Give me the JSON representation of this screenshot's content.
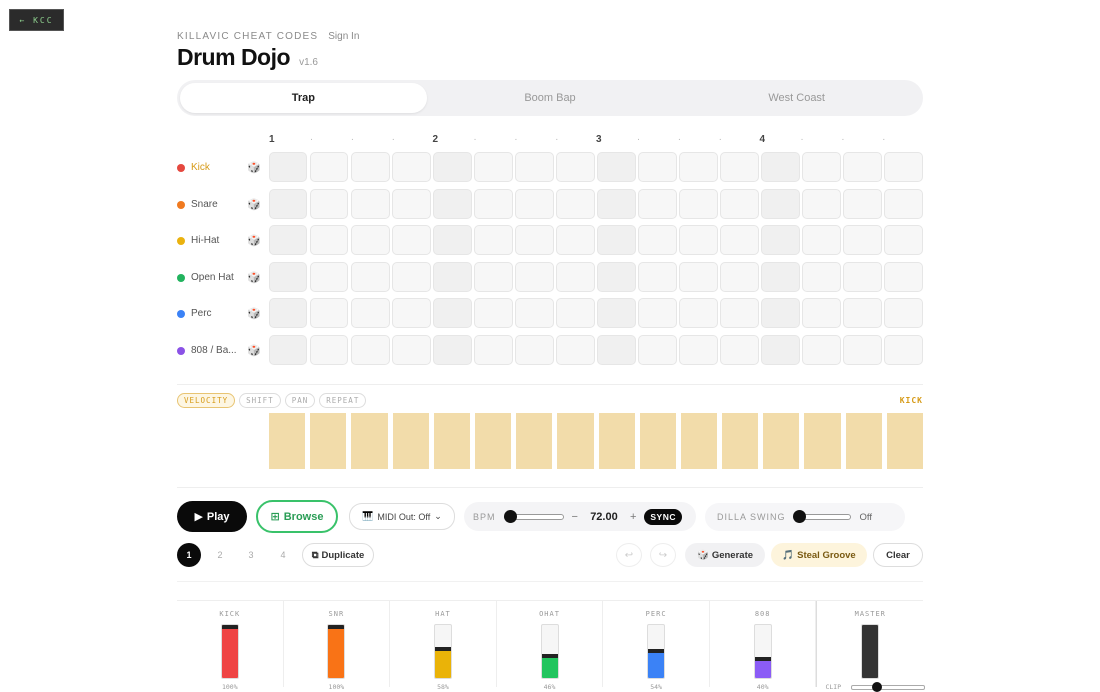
{
  "back_button": "← KCC",
  "header": {
    "brand": "KILLAVIC CHEAT CODES",
    "sign_in": "Sign In",
    "title": "Drum Dojo",
    "version": "v1.6"
  },
  "tabs": [
    {
      "label": "Trap",
      "active": true
    },
    {
      "label": "Boom Bap",
      "active": false
    },
    {
      "label": "West Coast",
      "active": false
    }
  ],
  "beat_markers": [
    "1",
    "·",
    "·",
    "·",
    "2",
    "·",
    "·",
    "·",
    "3",
    "·",
    "·",
    "·",
    "4",
    "·",
    "·",
    "·"
  ],
  "tracks": [
    {
      "name": "Kick",
      "color": "#e5483f",
      "active": true
    },
    {
      "name": "Snare",
      "color": "#f07a20",
      "active": false
    },
    {
      "name": "Hi-Hat",
      "color": "#eab20f",
      "active": false
    },
    {
      "name": "Open Hat",
      "color": "#22b35e",
      "active": false
    },
    {
      "name": "Perc",
      "color": "#3b82f6",
      "active": false
    },
    {
      "name": "808 / Ba...",
      "color": "#8b52e6",
      "active": false
    }
  ],
  "dice_icon": "🎲",
  "lanes": [
    {
      "label": "VELOCITY",
      "active": true
    },
    {
      "label": "SHIFT",
      "active": false
    },
    {
      "label": "PAN",
      "active": false
    },
    {
      "label": "REPEAT",
      "active": false
    }
  ],
  "selected_track_label": "KICK",
  "velocity_fill": [
    1,
    1,
    1,
    1,
    1,
    1,
    1,
    1,
    1,
    1,
    1,
    1,
    1,
    1,
    1,
    1
  ],
  "transport": {
    "play_label": "Play",
    "play_icon": "▶",
    "browse_label": "Browse",
    "browse_icon": "⊞",
    "midi_icon": "🎹",
    "midi_label": "MIDI Out: Off",
    "midi_caret": "⌄",
    "bpm_label": "BPM",
    "bpm_minus": "−",
    "bpm_value": "72.00",
    "bpm_plus": "+",
    "sync_label": "SYNC",
    "bpm_slider_fraction": 0.05,
    "swing_label": "DILLA SWING",
    "swing_value": "Off",
    "swing_slider_fraction": 0.0
  },
  "patterns": [
    "1",
    "2",
    "3",
    "4"
  ],
  "active_pattern": "1",
  "actions": {
    "duplicate_icon": "⧉",
    "duplicate_label": "Duplicate",
    "undo_icon": "↩",
    "redo_icon": "↪",
    "generate_icon": "🎲",
    "generate_label": "Generate",
    "steal_icon": "🎵",
    "steal_label": "Steal Groove",
    "clear_label": "Clear"
  },
  "mixer": {
    "channels": [
      {
        "label": "KICK",
        "value": "100%",
        "level": 1.0,
        "color": "#ef4444"
      },
      {
        "label": "SNR",
        "value": "100%",
        "level": 1.0,
        "color": "#f97316"
      },
      {
        "label": "HAT",
        "value": "58%",
        "level": 0.58,
        "color": "#eab308"
      },
      {
        "label": "OHAT",
        "value": "46%",
        "level": 0.46,
        "color": "#22c55e"
      },
      {
        "label": "PERC",
        "value": "54%",
        "level": 0.54,
        "color": "#3b82f6"
      },
      {
        "label": "808",
        "value": "40%",
        "level": 0.4,
        "color": "#8b5cf6"
      }
    ],
    "master_label": "MASTER",
    "master_level": 1.0,
    "master_color": "#333333",
    "clip_label": "CLIP"
  }
}
